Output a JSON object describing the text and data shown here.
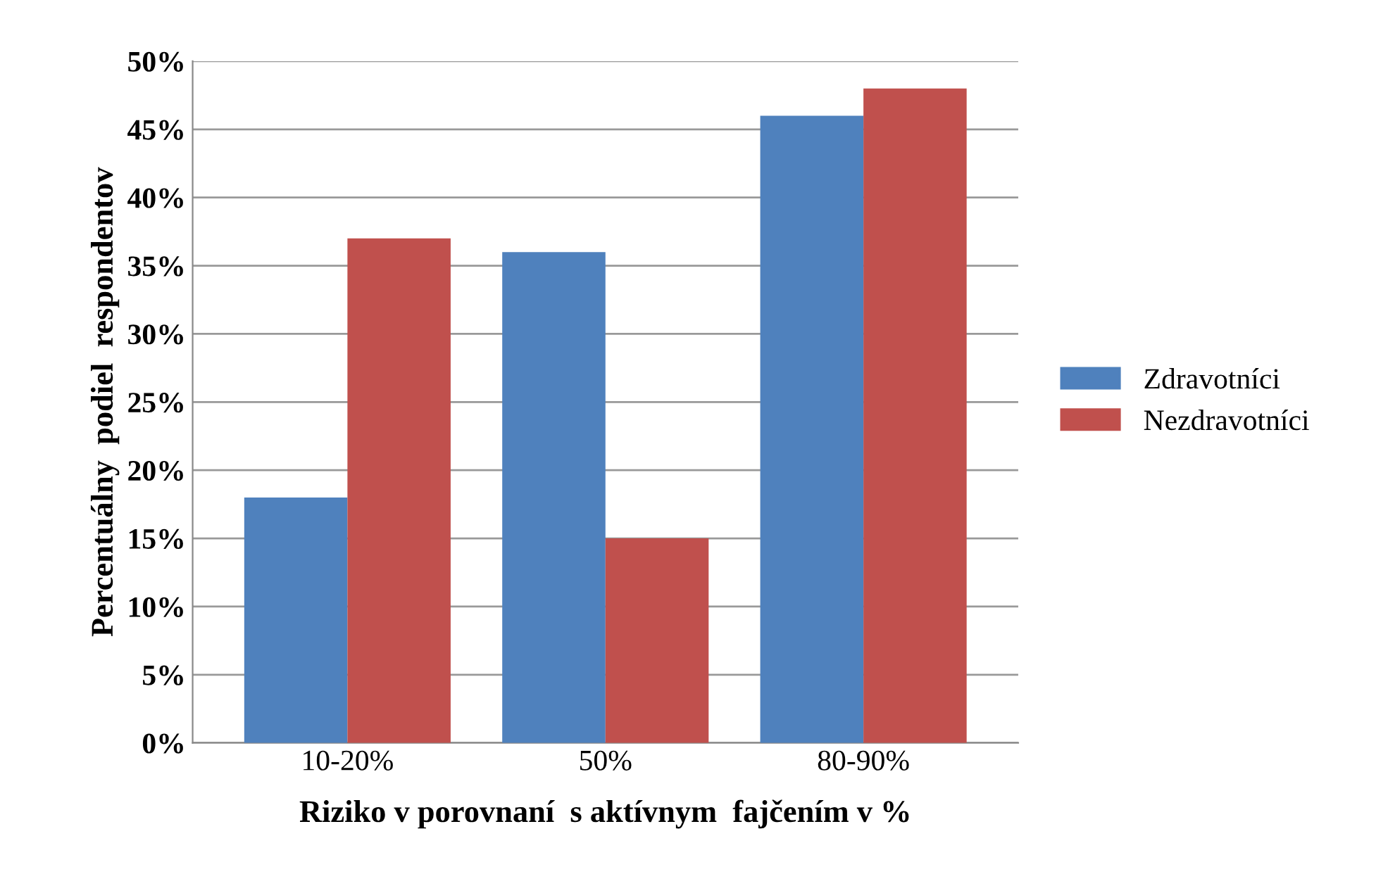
{
  "chart_data": {
    "type": "bar",
    "xlabel": "Riziko v porovnaní  s aktívnym  fajčením v %",
    "ylabel": "Percentuálny  podiel  respondentov",
    "categories": [
      "10-20%",
      "50%",
      "80-90%"
    ],
    "series": [
      {
        "name": "Zdravotníci",
        "color": "#4f81bd",
        "values": [
          18,
          36,
          46
        ]
      },
      {
        "name": "Nezdravotníci",
        "color": "#c0504d",
        "values": [
          37,
          15,
          48
        ]
      }
    ],
    "ylim": [
      0,
      50
    ],
    "yticks": [
      {
        "value": 0,
        "label": "0%"
      },
      {
        "value": 5,
        "label": "5%"
      },
      {
        "value": 10,
        "label": "10%"
      },
      {
        "value": 15,
        "label": "15%"
      },
      {
        "value": 20,
        "label": "20%"
      },
      {
        "value": 25,
        "label": "25%"
      },
      {
        "value": 30,
        "label": "30%"
      },
      {
        "value": 35,
        "label": "35%"
      },
      {
        "value": 40,
        "label": "40%"
      },
      {
        "value": 45,
        "label": "45%"
      },
      {
        "value": 50,
        "label": "50%"
      }
    ],
    "grid": "y",
    "legend": "right"
  }
}
